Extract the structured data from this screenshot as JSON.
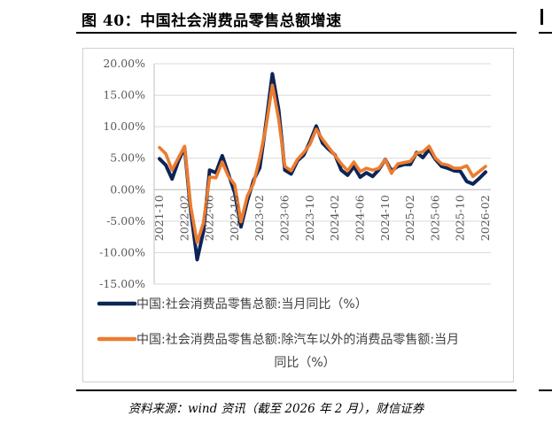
{
  "title": "图 40：中国社会消费品零售总额增速",
  "source": "资料来源：wind 资讯（截至 2026 年 2 月），财信证券",
  "chart_data": {
    "type": "line",
    "ylim": [
      -15,
      20
    ],
    "y_ticks": [
      {
        "value": 20,
        "label": "20.00%"
      },
      {
        "value": 15,
        "label": "15.00%"
      },
      {
        "value": 10,
        "label": "10.00%"
      },
      {
        "value": 5,
        "label": "5.00%"
      },
      {
        "value": 0,
        "label": "0.00%"
      },
      {
        "value": -5,
        "label": "-5.00%"
      },
      {
        "value": -10,
        "label": "-10.00%"
      },
      {
        "value": -15,
        "label": "-15.00%"
      }
    ],
    "x_ticks": [
      "2021-10",
      "2022-02",
      "2022-06",
      "2022-10",
      "2023-02",
      "2023-06",
      "2023-10",
      "2024-02",
      "2024-06",
      "2024-10",
      "2025-02",
      "2025-06",
      "2025-10",
      "2026-02"
    ],
    "x": [
      "2021-10",
      "2021-11",
      "2021-12",
      "2022-01",
      "2022-02",
      "2022-03",
      "2022-04",
      "2022-05",
      "2022-06",
      "2022-07",
      "2022-08",
      "2022-09",
      "2022-10",
      "2022-11",
      "2022-12",
      "2023-01",
      "2023-02",
      "2023-03",
      "2023-04",
      "2023-05",
      "2023-06",
      "2023-07",
      "2023-08",
      "2023-09",
      "2023-10",
      "2023-11",
      "2023-12",
      "2024-01",
      "2024-02",
      "2024-03",
      "2024-04",
      "2024-05",
      "2024-06",
      "2024-07",
      "2024-08",
      "2024-09",
      "2024-10",
      "2024-11",
      "2024-12",
      "2025-01",
      "2025-02",
      "2025-03",
      "2025-04",
      "2025-05",
      "2025-06",
      "2025-07",
      "2025-08",
      "2025-09",
      "2025-10",
      "2025-11",
      "2025-12",
      "2026-01",
      "2026-02"
    ],
    "series": [
      {
        "name": "中国:社会消费品零售总额:当月同比（%）",
        "color": "#0d2457",
        "values": [
          4.9,
          3.9,
          1.7,
          4.5,
          6.7,
          -3.5,
          -11.1,
          -6.7,
          3.1,
          2.7,
          5.4,
          2.5,
          -0.5,
          -5.9,
          -1.8,
          1.5,
          3.5,
          10.6,
          18.4,
          12.7,
          3.1,
          2.5,
          4.6,
          5.5,
          7.6,
          10.1,
          7.4,
          6.4,
          5.5,
          3.1,
          2.3,
          3.7,
          2.0,
          2.7,
          2.1,
          3.2,
          4.8,
          3.0,
          3.7,
          4.0,
          4.0,
          5.9,
          5.1,
          6.4,
          4.8,
          3.7,
          3.4,
          3.0,
          2.9,
          1.3,
          0.9,
          1.8,
          2.8
        ]
      },
      {
        "name": "中国:社会消费品零售总额:除汽车以外的消费品零售额:当月同比（%）",
        "color": "#ec7c30",
        "values": [
          6.7,
          5.7,
          3.1,
          5.0,
          6.9,
          -2.8,
          -8.4,
          -5.3,
          2.0,
          1.9,
          4.4,
          2.1,
          0.8,
          -5.1,
          -1.0,
          1.0,
          5.1,
          10.0,
          16.6,
          11.2,
          3.7,
          3.0,
          4.8,
          5.9,
          7.2,
          9.6,
          8.0,
          6.7,
          5.4,
          4.1,
          3.0,
          4.4,
          2.9,
          3.4,
          3.1,
          3.4,
          4.8,
          2.6,
          4.1,
          4.3,
          4.5,
          5.8,
          6.0,
          6.9,
          5.0,
          4.1,
          3.9,
          3.4,
          3.4,
          3.8,
          2.1,
          2.9,
          3.7
        ]
      }
    ],
    "grid": true,
    "legend_position": "bottom"
  }
}
